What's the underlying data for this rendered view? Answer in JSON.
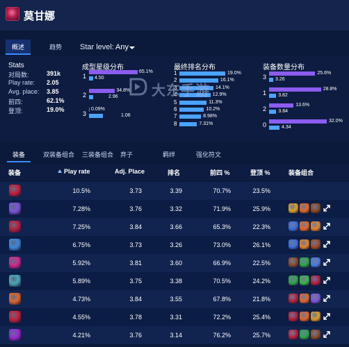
{
  "header": {
    "champion_name": "莫甘娜"
  },
  "tabs": [
    {
      "label": "概述",
      "active": true
    },
    {
      "label": "趋势",
      "active": false
    }
  ],
  "star_filter": {
    "label": "Star level:",
    "value": "Any"
  },
  "stats": {
    "title": "Stats",
    "rows": [
      {
        "key": "对局数:",
        "value": "391k"
      },
      {
        "key": "Play rate:",
        "value": "2.05"
      },
      {
        "key": "Avg. place:",
        "value": "3.85"
      },
      {
        "key": "前四:",
        "value": "62.1%"
      },
      {
        "key": "登顶:",
        "value": "19.0%"
      }
    ]
  },
  "star_distribution": {
    "title": "成型星级分布",
    "rows": [
      {
        "label": "1",
        "purple_value": "65.1%",
        "purple_pct": 65.1,
        "blue_value": "4.50",
        "blue_pct": 4.5
      },
      {
        "label": "2",
        "purple_value": "34.8%",
        "purple_pct": 34.8,
        "blue_value": "2.96",
        "blue_pct": 2.96
      },
      {
        "label": "3",
        "purple_value": "0.09%",
        "purple_pct": 0.09,
        "blue_value": "1.06",
        "blue_pct": 1.06
      }
    ]
  },
  "placement_distribution": {
    "title": "最终排名分布",
    "rows": [
      {
        "label": "1",
        "value": "19.0%",
        "pct": 19.0
      },
      {
        "label": "2",
        "value": "16.1%",
        "pct": 16.1
      },
      {
        "label": "3",
        "value": "14.1%",
        "pct": 14.1
      },
      {
        "label": "4",
        "value": "12.9%",
        "pct": 12.9
      },
      {
        "label": "5",
        "value": "11.3%",
        "pct": 11.3
      },
      {
        "label": "6",
        "value": "10.2%",
        "pct": 10.2
      },
      {
        "label": "7",
        "value": "8.98%",
        "pct": 8.98
      },
      {
        "label": "8",
        "value": "7.31%",
        "pct": 7.31
      }
    ]
  },
  "item_count_distribution": {
    "title": "装备数量分布",
    "rows": [
      {
        "label": "3",
        "purple_value": "25.6%",
        "purple_pct": 25.6,
        "blue_value": "3.26",
        "blue_pct": 3.26
      },
      {
        "label": "1",
        "purple_value": "28.8%",
        "purple_pct": 28.8,
        "blue_value": "3.82",
        "blue_pct": 3.82
      },
      {
        "label": "2",
        "purple_value": "13.6%",
        "purple_pct": 13.6,
        "blue_value": "3.84",
        "blue_pct": 3.84
      },
      {
        "label": "0",
        "purple_value": "32.0%",
        "purple_pct": 32.0,
        "blue_value": "4.34",
        "blue_pct": 4.34
      }
    ]
  },
  "watermark": {
    "text": "大东手游"
  },
  "lower_tabs": [
    {
      "label": "装备",
      "active": true
    },
    {
      "label": "双装备组合",
      "active": false
    },
    {
      "label": "三装备组合",
      "active": false
    },
    {
      "label": "弃子",
      "active": false
    },
    {
      "label": "羁绊",
      "active": false
    },
    {
      "label": "强化符文",
      "active": false
    }
  ],
  "table": {
    "headers": [
      "装备",
      "Play rate",
      "Adj. Place",
      "排名",
      "前四 %",
      "登顶 %",
      "装备组合"
    ],
    "rows": [
      {
        "icon_color": "#c4233a",
        "play_rate": "10.5%",
        "adj_place": "3.73",
        "rank": "3.39",
        "top4": "70.7%",
        "win": "23.5%",
        "combos": []
      },
      {
        "icon_color": "#7b56d8",
        "play_rate": "7.28%",
        "adj_place": "3.76",
        "rank": "3.32",
        "top4": "71.9%",
        "win": "25.9%",
        "combos": [
          "#d7a12a",
          "#e0672a",
          "#8a4b2a"
        ]
      },
      {
        "icon_color": "#b8203e",
        "play_rate": "7.25%",
        "adj_place": "3.84",
        "rank": "3.66",
        "top4": "65.3%",
        "win": "22.3%",
        "combos": [
          "#3a6ee0",
          "#e0672a",
          "#e0852a"
        ]
      },
      {
        "icon_color": "#3a8ad8",
        "play_rate": "6.75%",
        "adj_place": "3.73",
        "rank": "3.26",
        "top4": "73.0%",
        "win": "26.1%",
        "combos": [
          "#3a6ee0",
          "#e0852a",
          "#a04a2a"
        ]
      },
      {
        "icon_color": "#d02a8a",
        "play_rate": "5.92%",
        "adj_place": "3.81",
        "rank": "3.60",
        "top4": "66.9%",
        "win": "22.5%",
        "combos": [
          "#8a4b2a",
          "#2aa84a",
          "#4a7ee0"
        ]
      },
      {
        "icon_color": "#4aa8b8",
        "play_rate": "5.89%",
        "adj_place": "3.75",
        "rank": "3.38",
        "top4": "70.5%",
        "win": "24.2%",
        "combos": [
          "#2aa84a",
          "#3ab84a",
          "#b8203e"
        ]
      },
      {
        "icon_color": "#e0672a",
        "play_rate": "4.73%",
        "adj_place": "3.84",
        "rank": "3.55",
        "top4": "67.8%",
        "win": "21.8%",
        "combos": [
          "#b8203e",
          "#e0672a",
          "#7b56d8"
        ]
      },
      {
        "icon_color": "#c4233a",
        "play_rate": "4.55%",
        "adj_place": "3.78",
        "rank": "3.31",
        "top4": "72.2%",
        "win": "25.4%",
        "combos": [
          "#b8203e",
          "#e0672a",
          "#d7a12a"
        ]
      },
      {
        "icon_color": "#9a2ad0",
        "play_rate": "4.21%",
        "adj_place": "3.76",
        "rank": "3.14",
        "top4": "76.2%",
        "win": "25.7%",
        "combos": [
          "#b8203e",
          "#2aa84a",
          "#8a4b2a"
        ]
      }
    ]
  }
}
